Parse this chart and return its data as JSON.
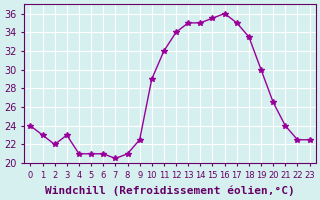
{
  "x": [
    0,
    1,
    2,
    3,
    4,
    5,
    6,
    7,
    8,
    9,
    10,
    11,
    12,
    13,
    14,
    15,
    16,
    17,
    18,
    19,
    20,
    21,
    22,
    23
  ],
  "y": [
    24,
    23,
    22,
    23,
    21,
    21,
    21,
    20.5,
    21,
    22.5,
    29,
    32,
    34,
    35,
    35,
    35.5,
    36,
    35,
    33.5,
    30,
    26.5,
    24,
    22.5,
    22.5
  ],
  "line_color": "#990099",
  "marker": "*",
  "marker_size": 4,
  "bg_color": "#d6f0f0",
  "grid_color": "#ffffff",
  "xlabel": "Windchill (Refroidissement éolien,°C)",
  "ylim": [
    20,
    37
  ],
  "xlim": [
    -0.5,
    23.5
  ],
  "yticks": [
    20,
    22,
    24,
    26,
    28,
    30,
    32,
    34,
    36
  ],
  "xtick_labels": [
    "0",
    "1",
    "2",
    "3",
    "4",
    "5",
    "6",
    "7",
    "8",
    "9",
    "10",
    "11",
    "12",
    "13",
    "14",
    "15",
    "16",
    "17",
    "18",
    "19",
    "20",
    "21",
    "22",
    "23"
  ],
  "tick_color": "#660066",
  "label_color": "#660066",
  "label_fontsize": 8,
  "tick_fontsize": 7
}
